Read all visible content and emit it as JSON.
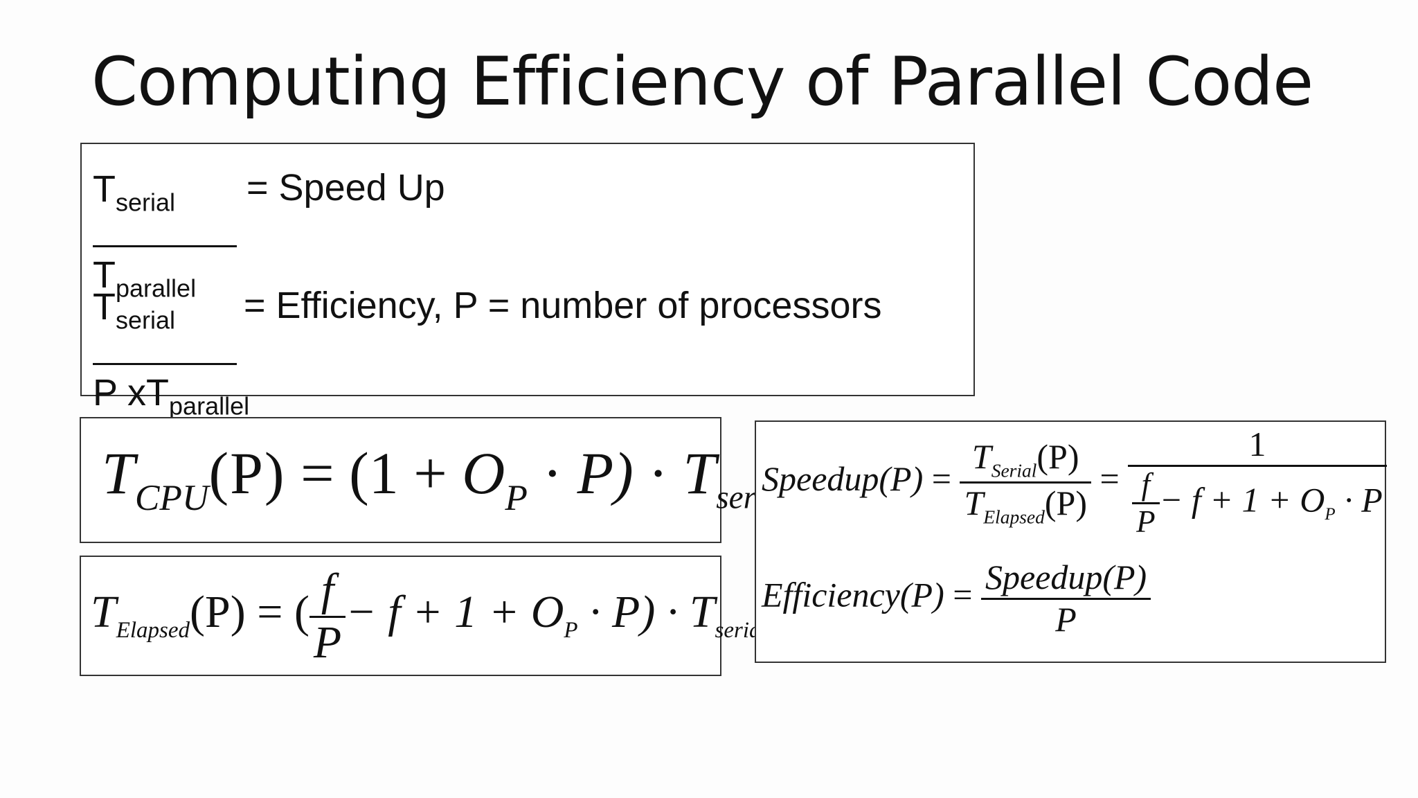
{
  "slide": {
    "title": "Computing Efficiency of Parallel Code"
  },
  "definitions": {
    "speedup": {
      "num_main": "T",
      "num_sub": "serial",
      "den_main": "T",
      "den_sub": "parallel",
      "label": "= Speed Up"
    },
    "efficiency": {
      "num_main": "T",
      "num_sub": "serial",
      "den_prefix": "P xT",
      "den_sub": "parallel",
      "label": "= Efficiency, P = number of processors"
    }
  },
  "formula_tcpu": {
    "t": "T",
    "t_sub": "CPU",
    "p_arg": "(P)",
    "eq": "=",
    "open": "(1",
    "plus": "+",
    "o": "O",
    "o_sub": "P",
    "dot1": "·",
    "p_close": "P)",
    "dot2": "·",
    "t2": "T",
    "t2_sub": "serial"
  },
  "formula_telapsed": {
    "t": "T",
    "t_sub": "Elapsed",
    "p_arg": "(P)",
    "eq": "= (",
    "frac_num": "f",
    "frac_den": "P",
    "rest": "− f + 1 + O",
    "o_sub": "P",
    "tail": "· P) · T",
    "t2_sub": "serial"
  },
  "formula_speedup": {
    "lhs": "Speedup(P)",
    "eq1": "=",
    "num_t": "T",
    "num_sub": "Serial",
    "num_arg": "(P)",
    "den_t": "T",
    "den_sub": "Elapsed",
    "den_arg": "(P)",
    "eq2": "=",
    "rhs_num": "1",
    "rhs_f_num": "f",
    "rhs_f_den": "P",
    "rhs_rest": "− f + 1 + O",
    "rhs_o_sub": "P",
    "rhs_tail": "· P"
  },
  "formula_efficiency": {
    "lhs": "Efficiency(P)",
    "eq": "=",
    "num": "Speedup(P)",
    "den": "P"
  }
}
